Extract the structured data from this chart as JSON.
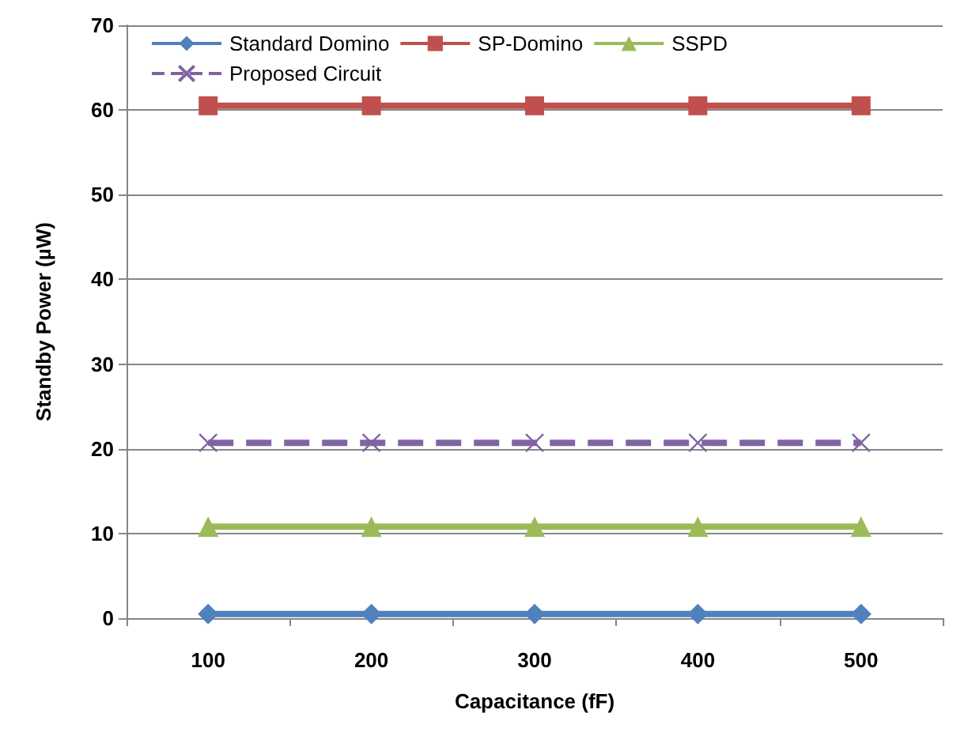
{
  "chart_data": {
    "type": "line",
    "xlabel": "Capacitance (fF)",
    "ylabel": "Standby Power (µW)",
    "categories": [
      "100",
      "200",
      "300",
      "400",
      "500"
    ],
    "series": [
      {
        "name": "Standard Domino",
        "color": "#4f81bd",
        "marker": "diamond",
        "line_style": "solid",
        "values": [
          0.5,
          0.5,
          0.5,
          0.5,
          0.5
        ]
      },
      {
        "name": "SP-Domino",
        "color": "#c0504d",
        "marker": "square",
        "line_style": "solid",
        "values": [
          60.5,
          60.5,
          60.5,
          60.5,
          60.5
        ]
      },
      {
        "name": "SSPD",
        "color": "#9bbb59",
        "marker": "triangle",
        "line_style": "solid",
        "values": [
          10.8,
          10.8,
          10.8,
          10.8,
          10.8
        ]
      },
      {
        "name": "Proposed Circuit",
        "color": "#8064a2",
        "marker": "cross",
        "line_style": "dashed",
        "values": [
          20.7,
          20.7,
          20.7,
          20.7,
          20.7
        ]
      }
    ],
    "ylim": [
      0,
      70
    ],
    "yticks": [
      0,
      10,
      20,
      30,
      40,
      50,
      60,
      70
    ],
    "grid": "y",
    "legend": "top"
  }
}
